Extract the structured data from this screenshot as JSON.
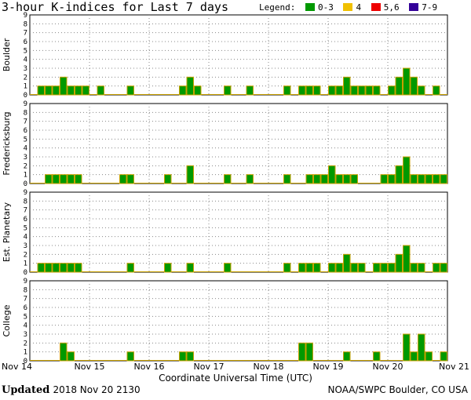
{
  "header": {
    "title": "3-hour K-indices for Last 7 days",
    "legend_label": "Legend:",
    "legend": [
      {
        "label": "0-3",
        "color": "#009900"
      },
      {
        "label": "4",
        "color": "#f0c000"
      },
      {
        "label": "5,6",
        "color": "#ee0000"
      },
      {
        "label": "7-9",
        "color": "#330099"
      }
    ]
  },
  "footer": {
    "updated_label": "Updated",
    "updated_value": "2018 Nov 20 2130",
    "source": "NOAA/SWPC Boulder, CO USA"
  },
  "chart_data": {
    "type": "bar",
    "xlabel": "Coordinate Universal Time (UTC)",
    "x_ticks": [
      "Nov 14",
      "Nov 15",
      "Nov 16",
      "Nov 17",
      "Nov 18",
      "Nov 19",
      "Nov 20",
      "Nov 21"
    ],
    "y_ticks": [
      0,
      1,
      2,
      3,
      4,
      5,
      6,
      7,
      8,
      9
    ],
    "ylim": [
      0,
      9
    ],
    "grid": true,
    "bar_color": "#009900",
    "bar_edge_color": "#c8a000",
    "panels": [
      {
        "name": "Boulder",
        "values": [
          0,
          1,
          1,
          1,
          2,
          1,
          1,
          1,
          0,
          1,
          0,
          0,
          0,
          1,
          0,
          0,
          0,
          0,
          0,
          0,
          1,
          2,
          1,
          0,
          0,
          0,
          1,
          0,
          0,
          1,
          0,
          0,
          0,
          0,
          1,
          0,
          1,
          1,
          1,
          0,
          1,
          1,
          2,
          1,
          1,
          1,
          1,
          0,
          1,
          2,
          3,
          2,
          1,
          0,
          1,
          0,
          0
        ]
      },
      {
        "name": "Fredericksburg",
        "values": [
          0,
          0,
          1,
          1,
          1,
          1,
          1,
          0,
          0,
          0,
          0,
          0,
          1,
          1,
          0,
          0,
          0,
          0,
          1,
          0,
          0,
          2,
          0,
          0,
          0,
          0,
          1,
          0,
          0,
          1,
          0,
          0,
          0,
          0,
          1,
          0,
          0,
          1,
          1,
          1,
          2,
          1,
          1,
          1,
          0,
          0,
          0,
          1,
          1,
          2,
          3,
          1,
          1,
          1,
          1,
          1,
          0
        ]
      },
      {
        "name": "Est. Planetary",
        "values": [
          0,
          1,
          1,
          1,
          1,
          1,
          1,
          0,
          0,
          0,
          0,
          0,
          0,
          1,
          0,
          0,
          0,
          0,
          1,
          0,
          0,
          1,
          0,
          0,
          0,
          0,
          1,
          0,
          0,
          0,
          0,
          0,
          0,
          0,
          1,
          0,
          1,
          1,
          1,
          0,
          1,
          1,
          2,
          1,
          1,
          0,
          1,
          1,
          1,
          2,
          3,
          1,
          1,
          0,
          1,
          1,
          0
        ]
      },
      {
        "name": "College",
        "values": [
          0,
          0,
          0,
          0,
          2,
          1,
          0,
          0,
          0,
          0,
          0,
          0,
          0,
          1,
          0,
          0,
          0,
          0,
          0,
          0,
          1,
          1,
          0,
          0,
          0,
          0,
          0,
          0,
          0,
          0,
          0,
          0,
          0,
          0,
          0,
          0,
          2,
          2,
          0,
          0,
          0,
          0,
          1,
          0,
          0,
          0,
          1,
          0,
          0,
          0,
          3,
          1,
          3,
          1,
          0,
          1,
          0
        ]
      }
    ]
  }
}
